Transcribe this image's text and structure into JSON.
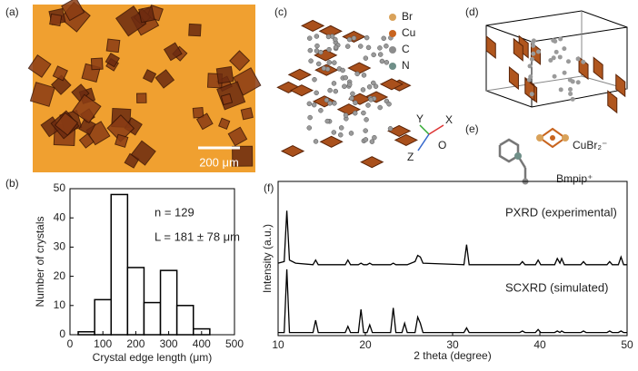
{
  "panels": {
    "a": {
      "label": "(a)",
      "scale_bar": "200 μm"
    },
    "b": {
      "label": "(b)"
    },
    "c": {
      "label": "(c)",
      "legend": [
        "Br",
        "Cu",
        "C",
        "N"
      ],
      "legend_colors": [
        "#d9a25a",
        "#c8641e",
        "#8c8c8c",
        "#6f8f88"
      ],
      "axes": [
        "Y",
        "X",
        "O",
        "Z"
      ]
    },
    "d": {
      "label": "(d)"
    },
    "e": {
      "label": "(e)",
      "anion": "CuBr₂⁻",
      "cation": "Bmpip⁺"
    },
    "f": {
      "label": "(f)"
    }
  },
  "chart_data": [
    {
      "type": "histogram",
      "x_label": "Crystal edge length (μm)",
      "y_label": "Number of crystals",
      "bins": [
        25,
        75,
        125,
        175,
        225,
        275,
        325,
        375,
        425
      ],
      "values": [
        1,
        12,
        48,
        23,
        11,
        22,
        10,
        2
      ],
      "color": "#ffffff",
      "xlim": [
        0,
        500
      ],
      "xticks": [
        0,
        100,
        200,
        300,
        400,
        500
      ],
      "ylim": [
        0,
        50
      ],
      "yticks": [
        0,
        10,
        20,
        30,
        40,
        50
      ],
      "annotations": [
        "n = 129",
        "L = 181 ± 78 μm"
      ]
    },
    {
      "type": "line",
      "x_label": "2 theta (degree)",
      "y_label": "Intensity (a.u.)",
      "x": [
        10,
        10.7,
        11.0,
        11.3,
        12,
        14.0,
        14.3,
        14.6,
        17.7,
        18.0,
        18.3,
        19.2,
        19.5,
        19.8,
        20.2,
        20.5,
        20.8,
        22.9,
        23.2,
        23.5,
        24.2,
        24.5,
        24.8,
        25.7,
        26.0,
        26.3,
        26.6,
        31.3,
        31.6,
        31.9,
        37.7,
        38.0,
        38.3,
        39.5,
        39.8,
        40.1,
        41.7,
        42.0,
        42.3,
        42.5,
        42.8,
        44.7,
        45.0,
        45.3,
        47.7,
        48.0,
        48.3,
        49.0,
        49.3,
        49.6,
        50
      ],
      "series": [
        {
          "name": "PXRD (experimental)",
          "color": "#000000",
          "values": [
            47,
            48,
            81,
            49,
            47,
            46,
            49,
            46,
            46,
            49,
            46,
            46,
            47,
            46,
            46,
            47,
            46,
            46,
            47,
            46,
            46,
            46,
            46,
            48,
            52,
            51,
            47,
            46,
            59,
            46,
            46,
            48,
            46,
            46,
            49,
            46,
            46,
            50,
            47,
            50,
            46,
            46,
            48,
            46,
            46,
            48,
            46,
            46,
            51,
            46,
            46
          ]
        },
        {
          "name": "SCXRD (simulated)",
          "color": "#000000",
          "values": [
            2,
            2,
            43,
            2,
            2,
            2,
            10,
            2,
            2,
            6,
            2,
            2,
            17,
            2,
            2,
            7,
            2,
            2,
            18,
            2,
            2,
            8,
            2,
            2,
            12,
            8,
            2,
            2,
            5,
            2,
            2,
            3,
            2,
            2,
            4,
            2,
            2,
            3,
            2,
            3,
            2,
            2,
            3,
            2,
            2,
            3,
            2,
            2,
            3,
            2,
            2
          ]
        }
      ],
      "xlim": [
        10,
        50
      ],
      "xticks": [
        10,
        20,
        30,
        40,
        50
      ],
      "ylim": [
        0,
        100
      ]
    }
  ]
}
